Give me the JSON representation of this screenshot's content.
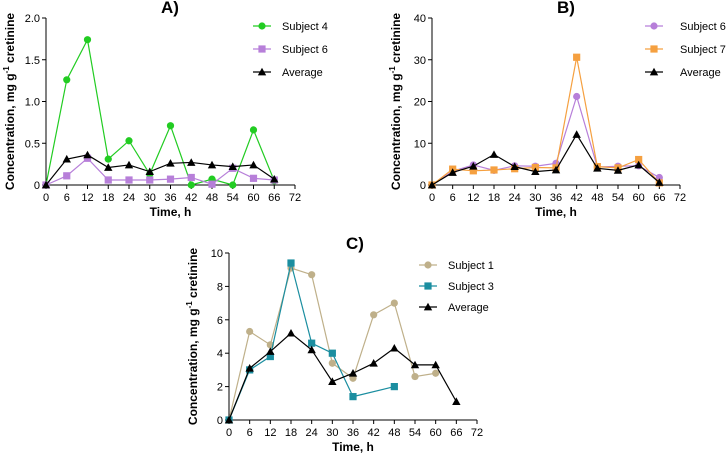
{
  "chart_data": [
    {
      "type": "line",
      "panel_label": "A)",
      "xlabel": "Time, h",
      "ylabel_main": "Concentration, mg g",
      "ylabel_sup": "-1",
      "ylabel_tail": " cretinine",
      "xlim": [
        0,
        72
      ],
      "ylim": [
        0,
        2.0
      ],
      "x_ticks": [
        "0",
        "6",
        "12",
        "18",
        "24",
        "30",
        "36",
        "42",
        "48",
        "54",
        "60",
        "66",
        "72"
      ],
      "y_ticks": [
        "0",
        "0.5",
        "1.0",
        "1.5",
        "2.0"
      ],
      "legend_position": "top-right",
      "series": [
        {
          "name": "Subject 4",
          "color": "#22cc22",
          "marker": "circle",
          "x": [
            0,
            6,
            12,
            18,
            24,
            30,
            36,
            42,
            48,
            54,
            60,
            66
          ],
          "y": [
            0,
            1.26,
            1.74,
            0.31,
            0.53,
            0.13,
            0.71,
            0,
            0.07,
            0,
            0.66,
            0.05
          ]
        },
        {
          "name": "Subject 6",
          "color": "#b77fd9",
          "marker": "square",
          "x": [
            0,
            6,
            12,
            18,
            24,
            30,
            36,
            42,
            48,
            54,
            60,
            66
          ],
          "y": [
            0,
            0.11,
            0.32,
            0.06,
            0.06,
            0.06,
            0.07,
            0.09,
            0.01,
            0.2,
            0.08,
            0.06
          ]
        },
        {
          "name": "Average",
          "color": "#000000",
          "marker": "triangle",
          "x": [
            0,
            6,
            12,
            18,
            24,
            30,
            36,
            42,
            48,
            54,
            60,
            66
          ],
          "y": [
            0,
            0.31,
            0.36,
            0.21,
            0.24,
            0.16,
            0.26,
            0.27,
            0.24,
            0.22,
            0.24,
            0.07
          ]
        }
      ]
    },
    {
      "type": "line",
      "panel_label": "B)",
      "xlabel": "Time, h",
      "ylabel_main": "Concentration, mg g",
      "ylabel_sup": "-1",
      "ylabel_tail": " cretinine",
      "xlim": [
        0,
        72
      ],
      "ylim": [
        0,
        40
      ],
      "x_ticks": [
        "0",
        "6",
        "12",
        "18",
        "24",
        "30",
        "36",
        "42",
        "48",
        "54",
        "60",
        "66",
        "72"
      ],
      "y_ticks": [
        "0",
        "10",
        "20",
        "30",
        "40"
      ],
      "legend_position": "top-right",
      "series": [
        {
          "name": "Subject 6",
          "color": "#b77fd9",
          "marker": "circle",
          "x": [
            0,
            6,
            12,
            18,
            24,
            30,
            36,
            42,
            48,
            54,
            60,
            66
          ],
          "y": [
            0,
            3.3,
            4.8,
            3.5,
            4.6,
            4.5,
            5.2,
            21.2,
            4.3,
            4.5,
            4.6,
            1.8
          ]
        },
        {
          "name": "Subject 7",
          "color": "#f5a040",
          "marker": "square",
          "x": [
            0,
            6,
            12,
            18,
            24,
            30,
            36,
            42,
            48,
            54,
            60,
            66
          ],
          "y": [
            0,
            3.8,
            3.4,
            3.6,
            3.9,
            4.2,
            4.1,
            30.6,
            4.4,
            4.1,
            6.1,
            0.5
          ]
        },
        {
          "name": "Average",
          "color": "#000000",
          "marker": "triangle",
          "x": [
            0,
            6,
            12,
            18,
            24,
            30,
            36,
            42,
            48,
            54,
            60,
            66
          ],
          "y": [
            0,
            3.0,
            4.5,
            7.3,
            4.4,
            3.2,
            3.6,
            12.1,
            4.0,
            3.5,
            4.8,
            0.6
          ]
        }
      ]
    },
    {
      "type": "line",
      "panel_label": "C)",
      "xlabel": "Time, h",
      "ylabel_main": "Concentration, mg g",
      "ylabel_sup": "-1",
      "ylabel_tail": " cretinine",
      "xlim": [
        0,
        72
      ],
      "ylim": [
        0,
        10
      ],
      "x_ticks": [
        "0",
        "6",
        "12",
        "18",
        "24",
        "30",
        "36",
        "42",
        "48",
        "54",
        "60",
        "66",
        "72"
      ],
      "y_ticks": [
        "0",
        "2",
        "4",
        "6",
        "8",
        "10"
      ],
      "legend_position": "top-right",
      "series": [
        {
          "name": "Subject 1",
          "color": "#bfb08a",
          "marker": "circle",
          "x": [
            0,
            6,
            12,
            18,
            24,
            30,
            36,
            42,
            48,
            54,
            60
          ],
          "y": [
            0,
            5.3,
            4.5,
            9.1,
            8.7,
            3.4,
            2.5,
            6.3,
            7.0,
            2.6,
            2.8
          ]
        },
        {
          "name": "Subject 3",
          "color": "#1b8ea0",
          "marker": "square",
          "x": [
            0,
            6,
            12,
            18,
            24,
            30,
            36,
            48
          ],
          "y": [
            0,
            3.0,
            3.8,
            9.4,
            4.6,
            4.0,
            1.4,
            2.0
          ]
        },
        {
          "name": "Average",
          "color": "#000000",
          "marker": "triangle",
          "x": [
            0,
            6,
            12,
            18,
            24,
            30,
            36,
            42,
            48,
            54,
            60,
            66
          ],
          "y": [
            0,
            3.1,
            4.1,
            5.2,
            4.2,
            2.3,
            2.8,
            3.4,
            4.3,
            3.3,
            3.3,
            1.1
          ]
        }
      ]
    }
  ]
}
